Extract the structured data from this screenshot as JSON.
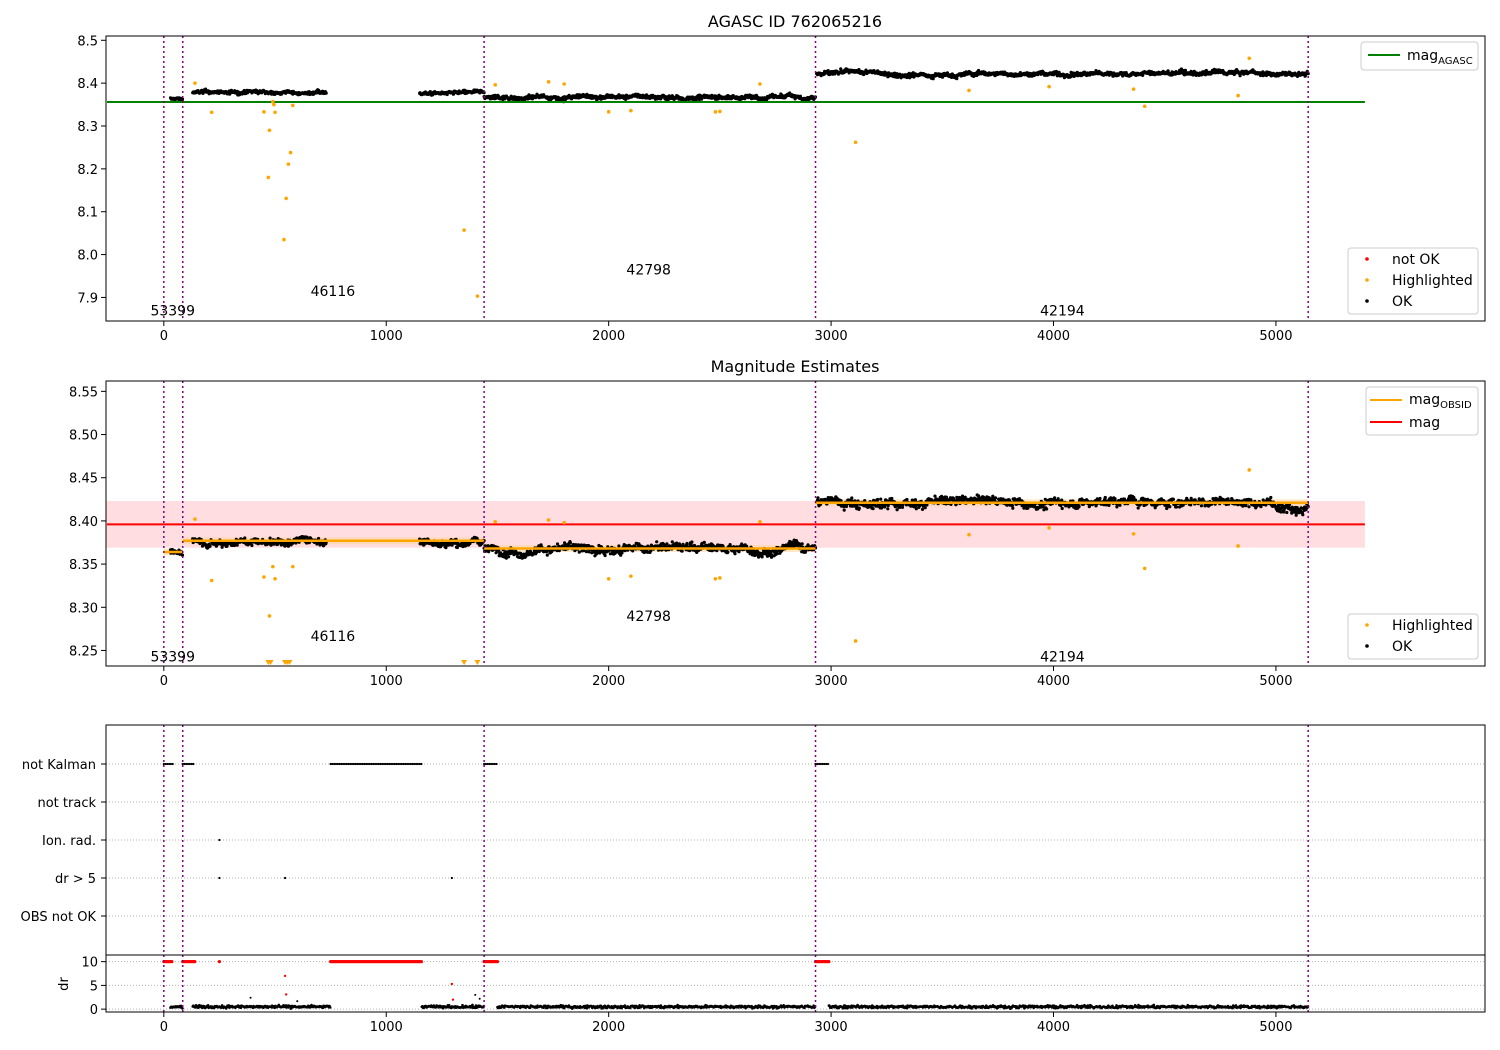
{
  "figure": {
    "panels": [
      {
        "title": "AGASC ID 762065216"
      },
      {
        "title": "Magnitude Estimates"
      },
      {
        "title": ""
      }
    ]
  },
  "chart_data": [
    {
      "type": "scatter",
      "title": "AGASC ID 762065216",
      "xlabel": "",
      "ylabel": "",
      "xlim": [
        -260,
        5940
      ],
      "ylim": [
        7.845,
        8.51
      ],
      "xticks": [
        0,
        1000,
        2000,
        3000,
        4000,
        5000
      ],
      "yticks": [
        7.9,
        8.0,
        8.1,
        8.2,
        8.3,
        8.4,
        8.5
      ],
      "obs_boundaries": [
        0,
        85,
        1440,
        2930,
        5145
      ],
      "obsids": [
        {
          "label": "53399",
          "x": 40,
          "y": 7.87
        },
        {
          "label": "46116",
          "x": 760,
          "y": 7.915
        },
        {
          "label": "42798",
          "x": 2180,
          "y": 7.965
        },
        {
          "label": "42194",
          "x": 4040,
          "y": 7.87
        }
      ],
      "hlines": [
        {
          "name": "mag_AGASC",
          "label": "mag",
          "sub": "AGASC",
          "y": 8.356,
          "x_from": -260,
          "x_to": 5400,
          "color": "#008000"
        }
      ],
      "segments": [
        {
          "x0": 30,
          "x1": 85,
          "mean": 8.363,
          "noise": 0.007
        },
        {
          "x0": 130,
          "x1": 730,
          "mean": 8.378,
          "noise": 0.008
        },
        {
          "x0": 1150,
          "x1": 1440,
          "mean": 8.376,
          "noise": 0.008
        },
        {
          "x0": 1440,
          "x1": 2930,
          "mean": 8.368,
          "noise": 0.01
        },
        {
          "x0": 2935,
          "x1": 5145,
          "mean": 8.422,
          "noise": 0.01
        }
      ],
      "highlighted": [
        [
          140,
          8.4
        ],
        [
          215,
          8.332
        ],
        [
          450,
          8.333
        ],
        [
          470,
          8.18
        ],
        [
          475,
          8.29
        ],
        [
          490,
          8.357
        ],
        [
          495,
          8.35
        ],
        [
          500,
          8.332
        ],
        [
          540,
          8.035
        ],
        [
          550,
          8.131
        ],
        [
          560,
          8.211
        ],
        [
          570,
          8.238
        ],
        [
          580,
          8.348
        ],
        [
          1350,
          8.057
        ],
        [
          1410,
          7.903
        ],
        [
          1490,
          8.396
        ],
        [
          1730,
          8.403
        ],
        [
          1800,
          8.398
        ],
        [
          2000,
          8.333
        ],
        [
          2100,
          8.336
        ],
        [
          2480,
          8.333
        ],
        [
          2500,
          8.334
        ],
        [
          2680,
          8.398
        ],
        [
          3110,
          8.262
        ],
        [
          3620,
          8.383
        ],
        [
          3980,
          8.392
        ],
        [
          4360,
          8.386
        ],
        [
          4410,
          8.346
        ],
        [
          4830,
          8.371
        ],
        [
          4880,
          8.458
        ]
      ],
      "series": [
        {
          "name": "not OK",
          "color": "#ff0000",
          "marker": "dot"
        },
        {
          "name": "Highlighted",
          "color": "#ffa500",
          "marker": "dot"
        },
        {
          "name": "OK",
          "color": "#000000",
          "marker": "dot"
        }
      ],
      "legends": [
        {
          "position": "top-right",
          "entries": [
            "mag_AGASC"
          ]
        },
        {
          "position": "bottom-right",
          "entries": [
            "not OK",
            "Highlighted",
            "OK"
          ]
        }
      ],
      "grid": false
    },
    {
      "type": "scatter",
      "title": "Magnitude Estimates",
      "xlabel": "",
      "ylabel": "",
      "xlim": [
        -260,
        5940
      ],
      "ylim": [
        8.232,
        8.562
      ],
      "xticks": [
        0,
        1000,
        2000,
        3000,
        4000,
        5000
      ],
      "yticks": [
        8.25,
        8.3,
        8.35,
        8.4,
        8.45,
        8.5,
        8.55
      ],
      "obs_boundaries": [
        0,
        85,
        1440,
        2930,
        5145
      ],
      "obsids": [
        {
          "label": "53399",
          "x": 40,
          "y": 8.243
        },
        {
          "label": "46116",
          "x": 760,
          "y": 8.267
        },
        {
          "label": "42798",
          "x": 2180,
          "y": 8.29
        },
        {
          "label": "42194",
          "x": 4040,
          "y": 8.243
        }
      ],
      "mag": {
        "value": 8.396,
        "band": [
          8.369,
          8.423
        ],
        "x_from": -260,
        "x_to": 5400,
        "color": "#ff0000",
        "band_color": "#ffdde0"
      },
      "mag_obsid_steps": [
        {
          "x0": 0,
          "x1": 85,
          "mean": 8.364,
          "band": 0.004
        },
        {
          "x0": 85,
          "x1": 1440,
          "mean": 8.377,
          "band": 0.004
        },
        {
          "x0": 1440,
          "x1": 2930,
          "mean": 8.368,
          "band": 0.004
        },
        {
          "x0": 2930,
          "x1": 5145,
          "mean": 8.421,
          "band": 0.004
        }
      ],
      "segments": [
        {
          "x0": 30,
          "x1": 85,
          "mean": 8.364,
          "noise": 0.006
        },
        {
          "x0": 130,
          "x1": 730,
          "mean": 8.378,
          "noise": 0.008
        },
        {
          "x0": 1150,
          "x1": 1440,
          "mean": 8.376,
          "noise": 0.008
        },
        {
          "x0": 1440,
          "x1": 2930,
          "mean": 8.368,
          "noise": 0.01
        },
        {
          "x0": 2935,
          "x1": 5145,
          "mean": 8.422,
          "noise": 0.01
        }
      ],
      "highlighted": [
        [
          140,
          8.402
        ],
        [
          215,
          8.331
        ],
        [
          450,
          8.335
        ],
        [
          475,
          8.29
        ],
        [
          490,
          8.347
        ],
        [
          500,
          8.333
        ],
        [
          580,
          8.347
        ],
        [
          1490,
          8.399
        ],
        [
          1730,
          8.401
        ],
        [
          1800,
          8.398
        ],
        [
          2000,
          8.333
        ],
        [
          2100,
          8.336
        ],
        [
          2480,
          8.333
        ],
        [
          2500,
          8.334
        ],
        [
          2680,
          8.399
        ],
        [
          3110,
          8.261
        ],
        [
          3620,
          8.384
        ],
        [
          3980,
          8.392
        ],
        [
          4360,
          8.385
        ],
        [
          4410,
          8.345
        ],
        [
          4830,
          8.371
        ],
        [
          4880,
          8.459
        ]
      ],
      "clipped_low": [
        470,
        480,
        545,
        555,
        565,
        1350,
        1410
      ],
      "series": [
        {
          "name": "mag_OBSID",
          "label": "mag",
          "sub": "OBSID",
          "color": "#ffa500"
        },
        {
          "name": "mag",
          "color": "#ff0000"
        },
        {
          "name": "Highlighted",
          "color": "#ffa500"
        },
        {
          "name": "OK",
          "color": "#000000"
        }
      ],
      "legends": [
        {
          "position": "top-right",
          "entries": [
            "mag_OBSID",
            "mag"
          ]
        },
        {
          "position": "bottom-right",
          "entries": [
            "Highlighted",
            "OK"
          ]
        }
      ],
      "grid": false
    },
    {
      "type": "scatter",
      "title": "",
      "xlabel": "",
      "ylabel": "dr",
      "xlim": [
        -260,
        5940
      ],
      "categories": [
        "not Kalman",
        "not track",
        "Ion. rad.",
        "dr > 5",
        "OBS not OK"
      ],
      "flag_ranges": {
        "not Kalman": [
          [
            0,
            40
          ],
          [
            85,
            140
          ],
          [
            750,
            1160
          ],
          [
            1440,
            1500
          ],
          [
            2930,
            2990
          ]
        ],
        "not track": [],
        "Ion. rad.": [
          [
            250,
            252
          ]
        ],
        "dr > 5": [
          [
            250,
            252
          ],
          [
            545,
            547
          ],
          [
            1295,
            1297
          ]
        ],
        "OBS not OK": []
      },
      "dr_ylim": [
        -0.6,
        11.4
      ],
      "dr_yticks": [
        0,
        5,
        10
      ],
      "xticks": [
        0,
        1000,
        2000,
        3000,
        4000,
        5000
      ],
      "obs_boundaries": [
        0,
        85,
        1440,
        2930,
        5145
      ],
      "dr_capped_at": 10,
      "dr_red_ranges": [
        [
          0,
          40
        ],
        [
          85,
          140
        ],
        [
          250,
          252
        ],
        [
          750,
          1160
        ],
        [
          1440,
          1500
        ],
        [
          2930,
          2990
        ]
      ],
      "dr_red_points": [
        [
          545,
          7.0
        ],
        [
          550,
          3.1
        ],
        [
          1295,
          5.3
        ],
        [
          1300,
          2.0
        ]
      ],
      "dr_black_segments": [
        [
          30,
          85
        ],
        [
          130,
          750
        ],
        [
          1160,
          1440
        ],
        [
          1500,
          2930
        ],
        [
          2990,
          5145
        ]
      ],
      "dr_black_points": [
        [
          390,
          2.4
        ],
        [
          600,
          1.7
        ],
        [
          1400,
          3.0
        ],
        [
          1420,
          2.2
        ]
      ],
      "grid": "horizontal dotted"
    }
  ]
}
